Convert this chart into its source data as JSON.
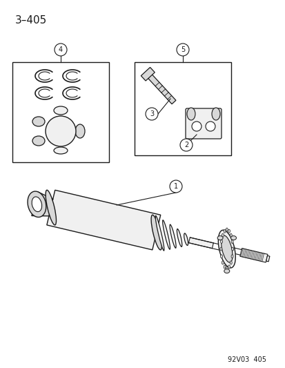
{
  "title": "3–405",
  "footer": "92V03  405",
  "bg_color": "#ffffff",
  "line_color": "#1a1a1a",
  "fill_light": "#f0f0f0",
  "fill_mid": "#d8d8d8",
  "fill_dark": "#b8b8b8"
}
